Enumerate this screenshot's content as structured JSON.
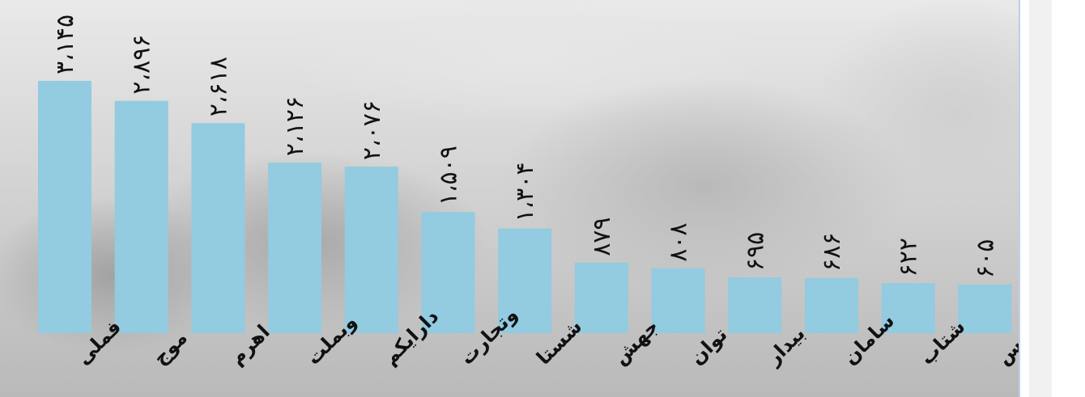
{
  "chart_data": {
    "type": "bar",
    "categories": [
      "فملی",
      "موج",
      "اهرم",
      "وبملت",
      "دارایکم",
      "وتجارت",
      "شستا",
      "جهش",
      "توان",
      "بیدار",
      "سامان",
      "شتاب",
      "فارس"
    ],
    "values": [
      3145,
      2896,
      2618,
      2126,
      2076,
      1509,
      1304,
      879,
      808,
      695,
      686,
      622,
      605
    ],
    "value_labels": [
      "۳،۱۴۵",
      "۲،۸۹۶",
      "۲،۶۱۸",
      "۲،۱۲۶",
      "۲،۰۷۶",
      "۱،۵۰۹",
      "۱،۳۰۴",
      "۸۷۹",
      "۸۰۸",
      "۶۹۵",
      "۶۸۶",
      "۶۲۲",
      "۶۰۵"
    ],
    "ylim": [
      0,
      3145
    ],
    "grid": false,
    "legend": "none",
    "bar_color": "#93cbe0",
    "label_color": "#111111"
  }
}
